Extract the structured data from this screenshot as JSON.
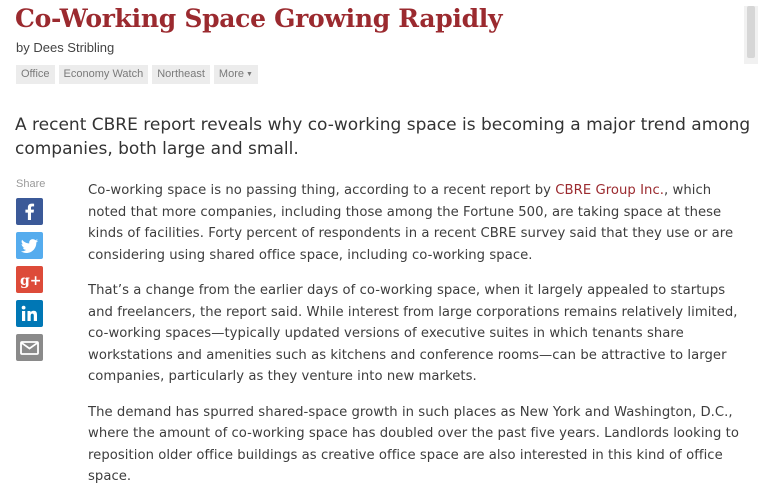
{
  "article": {
    "title": "Co-Working Space Growing Rapidly",
    "byline": "by Dees Stribling",
    "tags": [
      "Office",
      "Economy Watch",
      "Northeast"
    ],
    "more_label": "More",
    "lede": "A recent CBRE report reveals why co-working space is becoming a major trend among companies, both large and small.",
    "share_label": "Share",
    "share_icons": [
      "facebook-icon",
      "twitter-icon",
      "google-plus-icon",
      "linkedin-icon",
      "email-icon"
    ],
    "p1_before": "Co-working space is no passing thing, according to a recent report by ",
    "p1_link": "CBRE Group Inc.",
    "p1_after": ", which noted that more companies, including those among the Fortune 500, are taking space at these kinds of facilities. Forty percent of respondents in a recent CBRE survey said that they use or are considering using shared office space, including co-working space.",
    "p2": "That’s a change from the earlier days of co-working space, when it largely appealed to startups and freelancers, the report said. While interest from large corporations remains relatively limited, co-working spaces—typically updated versions of executive suites in which tenants share workstations and amenities such as kitchens and conference rooms—can be attractive to larger companies, particularly as they venture into new markets.",
    "p3": "The demand has spurred shared-space growth in such places as New York and Washington, D.C., where the amount of co-working space has doubled over the past five years. Landlords looking to reposition older office buildings as creative office space are also interested in this kind of office space."
  },
  "colors": {
    "title": "#9b2a2f",
    "facebook": "#3b5998",
    "twitter": "#55acee",
    "google_plus": "#dd4b39",
    "linkedin": "#0077b5",
    "email": "#8a8a8a"
  }
}
